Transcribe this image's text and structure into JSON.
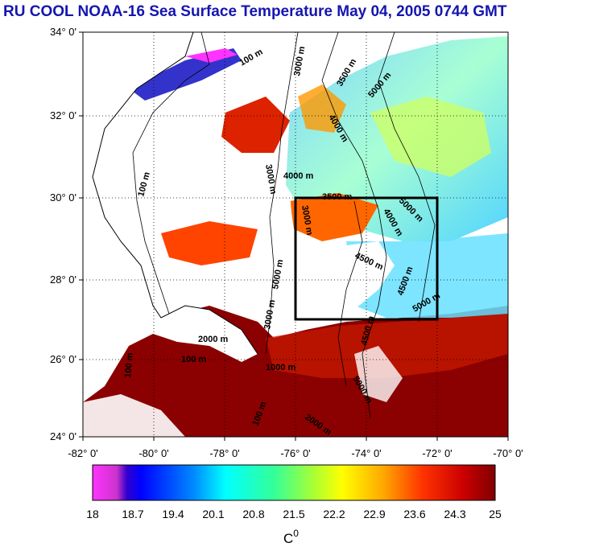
{
  "title": "RU COOL  NOAA-16 Sea Surface Temperature May 04, 2005 0744 GMT",
  "map": {
    "lat_labels": [
      "34° 0'",
      "32° 0'",
      "30° 0'",
      "28° 0'",
      "26° 0'",
      "24° 0'"
    ],
    "lon_labels": [
      "-82° 0'",
      "-80° 0'",
      "-78° 0'",
      "-76° 0'",
      "-74° 0'",
      "-72° 0'",
      "-70° 0'"
    ],
    "contour_labels": [
      "100 m",
      "3000 m",
      "3500 m",
      "5000 m",
      "4000 m",
      "3000 m",
      "100 m",
      "4000 m",
      "3500 m",
      "3000 m",
      "5000 m",
      "4000 m",
      "4500 m",
      "5000 m",
      "4500 m",
      "3000 m",
      "5000 m",
      "2000 m",
      "100 m",
      "100 m",
      "4500 m",
      "5000 m",
      "1000 m",
      "100 m",
      "2000 m"
    ],
    "box": {
      "lon": [
        -76,
        -72
      ],
      "lat": [
        27,
        30
      ]
    }
  },
  "colorbar": {
    "ticks": [
      "18",
      "18.7",
      "19.4",
      "20.1",
      "20.8",
      "21.5",
      "22.2",
      "22.9",
      "23.6",
      "24.3",
      "25"
    ],
    "unit": "C",
    "unit_sup": "0",
    "colors": [
      "#ff33ff",
      "#9900cc",
      "#0000ff",
      "#0066ff",
      "#00ccff",
      "#00ffcc",
      "#66ff33",
      "#ffff00",
      "#ff9900",
      "#ff3300",
      "#cc0000",
      "#8b0000"
    ]
  },
  "colors": {
    "land": "#ffffff",
    "sea_dark": "#8b0000",
    "frame": "#000000",
    "grid": "#000000"
  }
}
